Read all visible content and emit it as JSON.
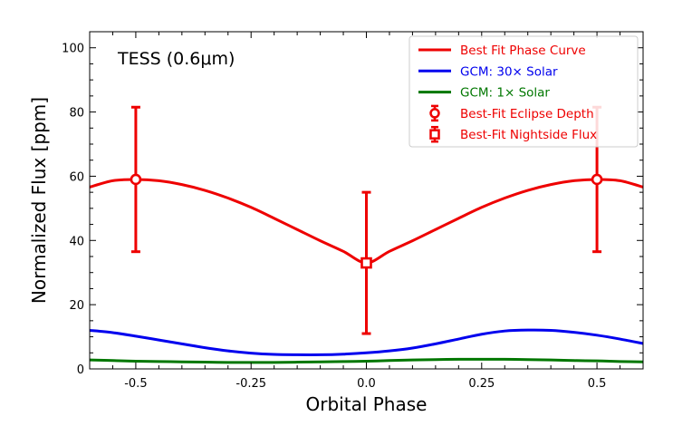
{
  "chart_data": {
    "type": "line",
    "title": "TESS (0.6μm)",
    "xlabel": "Orbital Phase",
    "ylabel": "Normalized Flux [ppm]",
    "xlim": [
      -0.6,
      0.6
    ],
    "ylim": [
      0,
      105
    ],
    "x_ticks": [
      -0.5,
      -0.25,
      0.0,
      0.25,
      0.5
    ],
    "x_tick_labels": [
      "-0.5",
      "-0.25",
      "0.0",
      "0.25",
      "0.5"
    ],
    "y_ticks": [
      0,
      20,
      40,
      60,
      80,
      100
    ],
    "y_tick_labels": [
      "0",
      "20",
      "40",
      "60",
      "80",
      "100"
    ],
    "legend_position": "top-right",
    "series": [
      {
        "name": "Best Fit Phase Curve",
        "color": "#ee0000",
        "x": [
          -0.6,
          -0.55,
          -0.5,
          -0.45,
          -0.4,
          -0.35,
          -0.3,
          -0.25,
          -0.2,
          -0.15,
          -0.1,
          -0.05,
          0.0,
          0.05,
          0.1,
          0.15,
          0.2,
          0.25,
          0.3,
          0.35,
          0.4,
          0.45,
          0.5,
          0.55,
          0.6
        ],
        "y": [
          56.6,
          58.6,
          59.0,
          58.6,
          57.4,
          55.6,
          53.2,
          50.3,
          46.9,
          43.4,
          39.9,
          36.6,
          33.0,
          36.6,
          39.9,
          43.4,
          46.9,
          50.3,
          53.2,
          55.6,
          57.4,
          58.6,
          59.0,
          58.6,
          56.6
        ]
      },
      {
        "name": "GCM: 30× Solar",
        "color": "#0000ee",
        "x": [
          -0.6,
          -0.55,
          -0.5,
          -0.45,
          -0.4,
          -0.35,
          -0.3,
          -0.25,
          -0.2,
          -0.15,
          -0.1,
          -0.05,
          0.0,
          0.05,
          0.1,
          0.15,
          0.2,
          0.25,
          0.3,
          0.35,
          0.4,
          0.45,
          0.5,
          0.55,
          0.6
        ],
        "y": [
          12.0,
          11.3,
          10.2,
          9.0,
          7.8,
          6.6,
          5.6,
          4.9,
          4.5,
          4.4,
          4.4,
          4.6,
          5.0,
          5.6,
          6.5,
          7.8,
          9.3,
          10.8,
          11.8,
          12.1,
          12.0,
          11.4,
          10.5,
          9.3,
          7.9
        ]
      },
      {
        "name": "GCM: 1× Solar",
        "color": "#007700",
        "x": [
          -0.6,
          -0.55,
          -0.5,
          -0.45,
          -0.4,
          -0.35,
          -0.3,
          -0.25,
          -0.2,
          -0.15,
          -0.1,
          -0.05,
          0.0,
          0.05,
          0.1,
          0.15,
          0.2,
          0.25,
          0.3,
          0.35,
          0.4,
          0.45,
          0.5,
          0.55,
          0.6
        ],
        "y": [
          2.8,
          2.6,
          2.4,
          2.3,
          2.2,
          2.1,
          2.0,
          2.0,
          2.0,
          2.1,
          2.2,
          2.3,
          2.4,
          2.6,
          2.8,
          2.9,
          3.0,
          3.0,
          3.0,
          2.9,
          2.8,
          2.6,
          2.5,
          2.3,
          2.2
        ]
      }
    ],
    "points": [
      {
        "name": "Best-Fit Eclipse Depth",
        "marker": "circle",
        "color": "#ee0000",
        "x": -0.5,
        "y": 59.0,
        "yerr_low": 22.5,
        "yerr_high": 22.5
      },
      {
        "name": "Best-Fit Eclipse Depth",
        "marker": "circle",
        "color": "#ee0000",
        "x": 0.5,
        "y": 59.0,
        "yerr_low": 22.5,
        "yerr_high": 22.5
      },
      {
        "name": "Best-Fit Nightside Flux",
        "marker": "square",
        "color": "#ee0000",
        "x": 0.0,
        "y": 33.0,
        "yerr_low": 22.0,
        "yerr_high": 22.0
      }
    ],
    "legend": [
      {
        "label": "Best Fit Phase Curve",
        "kind": "line",
        "color": "#ee0000"
      },
      {
        "label": "GCM: 30× Solar",
        "kind": "line",
        "color": "#0000ee"
      },
      {
        "label": "GCM: 1× Solar",
        "kind": "line",
        "color": "#007700"
      },
      {
        "label": "Best-Fit Eclipse Depth",
        "kind": "circle",
        "color": "#ee0000"
      },
      {
        "label": "Best-Fit Nightside Flux",
        "kind": "square",
        "color": "#ee0000"
      }
    ]
  }
}
